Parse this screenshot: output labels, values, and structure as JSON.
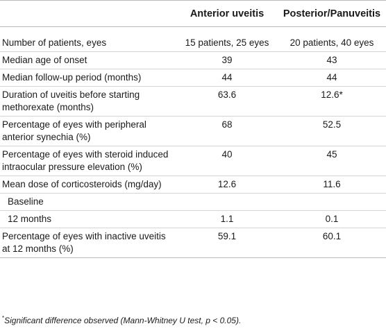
{
  "table": {
    "headers": [
      "",
      "Anterior uveitis",
      "Posterior/Panuveitis"
    ],
    "rows": [
      {
        "label": "Number of patients, eyes",
        "anterior": "15 patients, 25 eyes",
        "posterior": "20 patients, 40 eyes"
      },
      {
        "label": "Median age of onset",
        "anterior": "39",
        "posterior": "43"
      },
      {
        "label": "Median follow-up period (months)",
        "anterior": "44",
        "posterior": "44"
      },
      {
        "label": "Duration of uveitis before starting methorexate (months)",
        "anterior": "63.6",
        "posterior": "12.6*"
      },
      {
        "label": "Percentage of eyes with peripheral anterior synechia (%)",
        "anterior": "68",
        "posterior": "52.5"
      },
      {
        "label": "Percentage of eyes with steroid induced intraocular pressure elevation (%)",
        "anterior": "40",
        "posterior": "45"
      },
      {
        "label": "Mean dose of corticosteroids (mg/day)",
        "anterior": "12.6",
        "posterior": "11.6"
      },
      {
        "label": "Baseline",
        "anterior": "",
        "posterior": ""
      },
      {
        "label": "12 months",
        "anterior": "1.1",
        "posterior": "0.1"
      },
      {
        "label": "Percentage of eyes with inactive uveitis at 12 months (%)",
        "anterior": "59.1",
        "posterior": "60.1"
      }
    ]
  },
  "footnote": {
    "marker": "*",
    "text": "Significant difference observed (Mann-Whitney U test, p < 0.05)."
  }
}
